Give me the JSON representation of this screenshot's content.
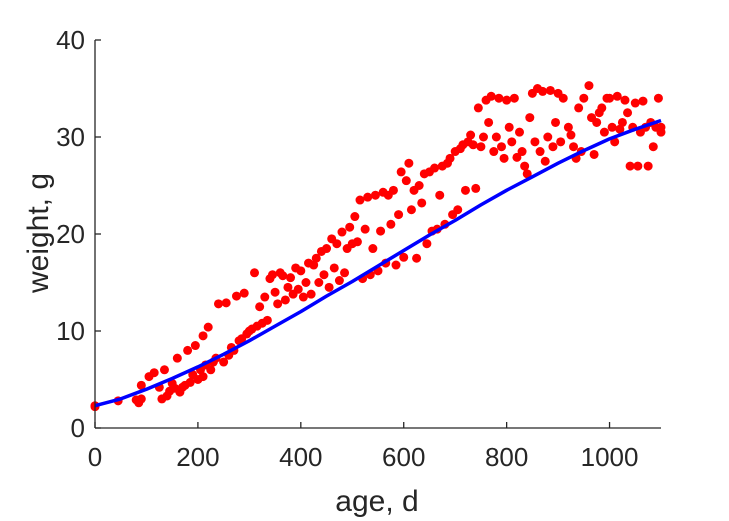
{
  "chart_data": {
    "type": "scatter",
    "title": "",
    "xlabel": "age, d",
    "ylabel": "weight, g",
    "xlim": [
      0,
      1100
    ],
    "ylim": [
      0,
      40
    ],
    "xticks": [
      0,
      200,
      400,
      600,
      800,
      1000
    ],
    "yticks": [
      0,
      10,
      20,
      30,
      40
    ],
    "grid": false,
    "legend": "none",
    "colors": {
      "points": "#ff0000",
      "curve": "#0000ff",
      "axes": "#262626"
    },
    "series": [
      {
        "kind": "points",
        "points": [
          [
            0,
            2.3
          ],
          [
            0,
            2.2
          ],
          [
            45,
            2.8
          ],
          [
            80,
            2.9
          ],
          [
            85,
            2.6
          ],
          [
            90,
            3.0
          ],
          [
            90,
            4.4
          ],
          [
            105,
            5.3
          ],
          [
            115,
            5.7
          ],
          [
            125,
            4.2
          ],
          [
            130,
            3.0
          ],
          [
            135,
            6.0
          ],
          [
            140,
            3.3
          ],
          [
            145,
            3.8
          ],
          [
            150,
            4.6
          ],
          [
            155,
            4.1
          ],
          [
            160,
            7.2
          ],
          [
            165,
            3.7
          ],
          [
            170,
            4.2
          ],
          [
            175,
            4.4
          ],
          [
            180,
            8.0
          ],
          [
            185,
            4.7
          ],
          [
            190,
            5.5
          ],
          [
            195,
            8.5
          ],
          [
            200,
            5.0
          ],
          [
            205,
            6.0
          ],
          [
            210,
            9.5
          ],
          [
            210,
            5.3
          ],
          [
            215,
            6.5
          ],
          [
            220,
            10.4
          ],
          [
            225,
            6.0
          ],
          [
            230,
            6.8
          ],
          [
            235,
            7.2
          ],
          [
            240,
            12.8
          ],
          [
            250,
            6.8
          ],
          [
            255,
            12.9
          ],
          [
            260,
            7.5
          ],
          [
            265,
            8.3
          ],
          [
            270,
            8.0
          ],
          [
            275,
            13.6
          ],
          [
            280,
            9.0
          ],
          [
            285,
            9.2
          ],
          [
            290,
            13.9
          ],
          [
            295,
            9.7
          ],
          [
            300,
            10.0
          ],
          [
            305,
            10.2
          ],
          [
            310,
            16.0
          ],
          [
            315,
            10.5
          ],
          [
            320,
            12.5
          ],
          [
            325,
            10.8
          ],
          [
            330,
            13.5
          ],
          [
            335,
            11.1
          ],
          [
            340,
            15.4
          ],
          [
            345,
            15.8
          ],
          [
            350,
            14.0
          ],
          [
            355,
            12.8
          ],
          [
            360,
            16.0
          ],
          [
            365,
            15.7
          ],
          [
            370,
            13.2
          ],
          [
            375,
            14.5
          ],
          [
            380,
            15.5
          ],
          [
            385,
            13.8
          ],
          [
            390,
            16.5
          ],
          [
            395,
            14.3
          ],
          [
            400,
            16.2
          ],
          [
            405,
            13.5
          ],
          [
            410,
            15.0
          ],
          [
            415,
            17.0
          ],
          [
            420,
            13.8
          ],
          [
            425,
            16.8
          ],
          [
            430,
            17.5
          ],
          [
            435,
            15.0
          ],
          [
            440,
            18.2
          ],
          [
            445,
            15.8
          ],
          [
            450,
            18.5
          ],
          [
            455,
            14.5
          ],
          [
            460,
            19.5
          ],
          [
            465,
            16.5
          ],
          [
            470,
            19.0
          ],
          [
            475,
            15.2
          ],
          [
            480,
            20.2
          ],
          [
            485,
            16.0
          ],
          [
            490,
            18.5
          ],
          [
            495,
            20.7
          ],
          [
            500,
            19.0
          ],
          [
            505,
            21.8
          ],
          [
            510,
            19.2
          ],
          [
            515,
            23.5
          ],
          [
            520,
            15.4
          ],
          [
            525,
            20.5
          ],
          [
            530,
            23.8
          ],
          [
            535,
            15.8
          ],
          [
            540,
            18.5
          ],
          [
            545,
            24.0
          ],
          [
            550,
            16.2
          ],
          [
            555,
            20.3
          ],
          [
            560,
            24.3
          ],
          [
            565,
            17.0
          ],
          [
            570,
            24.0
          ],
          [
            575,
            21.0
          ],
          [
            580,
            24.5
          ],
          [
            585,
            16.8
          ],
          [
            590,
            22.0
          ],
          [
            595,
            26.4
          ],
          [
            600,
            17.6
          ],
          [
            605,
            25.5
          ],
          [
            610,
            27.3
          ],
          [
            615,
            22.5
          ],
          [
            620,
            24.5
          ],
          [
            625,
            17.5
          ],
          [
            630,
            25.0
          ],
          [
            635,
            23.2
          ],
          [
            640,
            26.2
          ],
          [
            645,
            19.0
          ],
          [
            650,
            26.4
          ],
          [
            655,
            20.3
          ],
          [
            660,
            26.8
          ],
          [
            665,
            20.5
          ],
          [
            670,
            24.0
          ],
          [
            675,
            27.0
          ],
          [
            680,
            21.0
          ],
          [
            685,
            27.3
          ],
          [
            690,
            27.8
          ],
          [
            695,
            22.0
          ],
          [
            700,
            28.5
          ],
          [
            705,
            22.5
          ],
          [
            710,
            28.8
          ],
          [
            715,
            29.2
          ],
          [
            720,
            24.5
          ],
          [
            725,
            29.5
          ],
          [
            730,
            30.2
          ],
          [
            735,
            29.2
          ],
          [
            740,
            24.7
          ],
          [
            745,
            33.0
          ],
          [
            750,
            29.0
          ],
          [
            755,
            30.0
          ],
          [
            760,
            33.8
          ],
          [
            765,
            31.5
          ],
          [
            770,
            34.2
          ],
          [
            775,
            28.5
          ],
          [
            780,
            30.0
          ],
          [
            785,
            34.0
          ],
          [
            790,
            29.0
          ],
          [
            795,
            27.8
          ],
          [
            800,
            33.8
          ],
          [
            805,
            31.0
          ],
          [
            810,
            29.5
          ],
          [
            815,
            34.0
          ],
          [
            820,
            27.9
          ],
          [
            825,
            30.5
          ],
          [
            830,
            28.5
          ],
          [
            835,
            27.0
          ],
          [
            840,
            26.2
          ],
          [
            845,
            32.0
          ],
          [
            850,
            34.5
          ],
          [
            855,
            29.5
          ],
          [
            860,
            35.0
          ],
          [
            865,
            28.5
          ],
          [
            870,
            34.7
          ],
          [
            875,
            27.5
          ],
          [
            880,
            30.0
          ],
          [
            885,
            34.8
          ],
          [
            890,
            29.0
          ],
          [
            895,
            31.5
          ],
          [
            900,
            34.5
          ],
          [
            905,
            29.5
          ],
          [
            910,
            34.0
          ],
          [
            920,
            31.0
          ],
          [
            925,
            30.2
          ],
          [
            930,
            29.0
          ],
          [
            935,
            27.8
          ],
          [
            940,
            33.0
          ],
          [
            945,
            28.5
          ],
          [
            950,
            34.0
          ],
          [
            960,
            35.3
          ],
          [
            965,
            32.0
          ],
          [
            970,
            28.2
          ],
          [
            975,
            31.5
          ],
          [
            980,
            32.5
          ],
          [
            985,
            33.0
          ],
          [
            990,
            30.5
          ],
          [
            995,
            34.0
          ],
          [
            1000,
            34.0
          ],
          [
            1005,
            31.0
          ],
          [
            1010,
            29.5
          ],
          [
            1015,
            34.2
          ],
          [
            1020,
            30.8
          ],
          [
            1025,
            31.5
          ],
          [
            1030,
            33.8
          ],
          [
            1035,
            32.5
          ],
          [
            1040,
            27.0
          ],
          [
            1045,
            31.0
          ],
          [
            1050,
            33.5
          ],
          [
            1055,
            27.0
          ],
          [
            1060,
            30.5
          ],
          [
            1065,
            33.7
          ],
          [
            1070,
            31.0
          ],
          [
            1075,
            27.0
          ],
          [
            1080,
            31.5
          ],
          [
            1085,
            29.0
          ],
          [
            1090,
            31.0
          ],
          [
            1095,
            34.0
          ],
          [
            1100,
            30.5
          ],
          [
            1100,
            31.0
          ]
        ]
      },
      {
        "kind": "curve",
        "x": [
          0,
          50,
          100,
          150,
          200,
          250,
          300,
          350,
          400,
          450,
          500,
          550,
          600,
          650,
          700,
          750,
          800,
          850,
          900,
          950,
          1000,
          1050,
          1100
        ],
        "y": [
          2.3,
          3.0,
          4.0,
          5.1,
          6.3,
          7.6,
          9.0,
          10.5,
          12.0,
          13.6,
          15.1,
          16.7,
          18.3,
          19.9,
          21.4,
          23.0,
          24.5,
          25.9,
          27.3,
          28.6,
          29.8,
          30.8,
          31.7
        ]
      }
    ]
  }
}
